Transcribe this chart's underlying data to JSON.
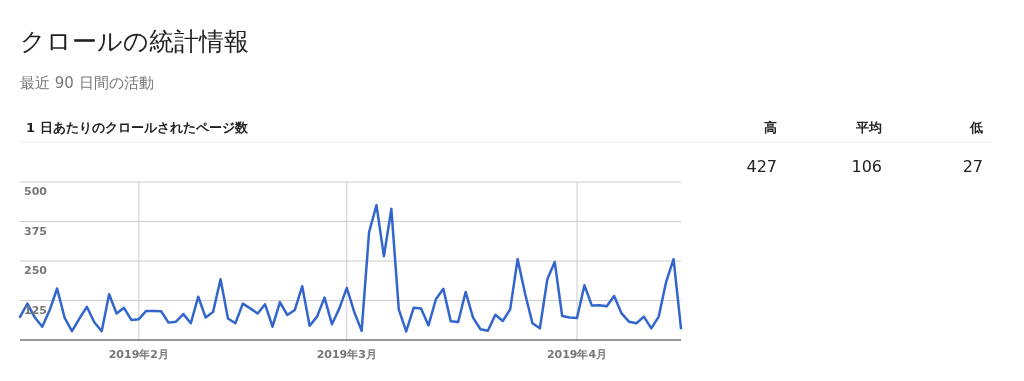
{
  "chart_data": {
    "type": "line",
    "title": "クロールの統計情報",
    "subtitle": "最近 90 日間の活動",
    "annotations": [
      "1 日あたりのクロールされたページ数",
      "高",
      "平均",
      "低",
      "427",
      "106",
      "27"
    ],
    "x": [
      "2019-01-16",
      "2019-01-17",
      "2019-01-18",
      "2019-01-19",
      "2019-01-20",
      "2019-01-21",
      "2019-01-22",
      "2019-01-23",
      "2019-01-24",
      "2019-01-25",
      "2019-01-26",
      "2019-01-27",
      "2019-01-28",
      "2019-01-29",
      "2019-01-30",
      "2019-01-31",
      "2019-02-01",
      "2019-02-02",
      "2019-02-03",
      "2019-02-04",
      "2019-02-05",
      "2019-02-06",
      "2019-02-07",
      "2019-02-08",
      "2019-02-09",
      "2019-02-10",
      "2019-02-11",
      "2019-02-12",
      "2019-02-13",
      "2019-02-14",
      "2019-02-15",
      "2019-02-16",
      "2019-02-17",
      "2019-02-18",
      "2019-02-19",
      "2019-02-20",
      "2019-02-21",
      "2019-02-22",
      "2019-02-23",
      "2019-02-24",
      "2019-02-25",
      "2019-02-26",
      "2019-02-27",
      "2019-02-28",
      "2019-03-01",
      "2019-03-02",
      "2019-03-03",
      "2019-03-04",
      "2019-03-05",
      "2019-03-06",
      "2019-03-07",
      "2019-03-08",
      "2019-03-09",
      "2019-03-10",
      "2019-03-11",
      "2019-03-12",
      "2019-03-13",
      "2019-03-14",
      "2019-03-15",
      "2019-03-16",
      "2019-03-17",
      "2019-03-18",
      "2019-03-19",
      "2019-03-20",
      "2019-03-21",
      "2019-03-22",
      "2019-03-23",
      "2019-03-24",
      "2019-03-25",
      "2019-03-26",
      "2019-03-27",
      "2019-03-28",
      "2019-03-29",
      "2019-03-30",
      "2019-03-31",
      "2019-04-01",
      "2019-04-02",
      "2019-04-03",
      "2019-04-04",
      "2019-04-05",
      "2019-04-06",
      "2019-04-07",
      "2019-04-08",
      "2019-04-09",
      "2019-04-10",
      "2019-04-11",
      "2019-04-12",
      "2019-04-13",
      "2019-04-14",
      "2019-04-15"
    ],
    "series": [
      {
        "color": "#3366cc",
        "values": [
          73,
          115,
          71,
          42,
          95,
          163,
          71,
          28,
          68,
          105,
          56,
          28,
          145,
          84,
          102,
          63,
          66,
          92,
          92,
          91,
          55,
          58,
          82,
          53,
          137,
          71,
          89,
          192,
          68,
          53,
          115,
          100,
          84,
          113,
          42,
          120,
          79,
          95,
          170,
          45,
          74,
          134,
          50,
          100,
          165,
          89,
          29,
          341,
          427,
          265,
          415,
          97,
          27,
          102,
          100,
          46,
          129,
          162,
          59,
          57,
          152,
          71,
          34,
          29,
          80,
          60,
          97,
          256,
          147,
          53,
          37,
          192,
          247,
          76,
          71,
          70,
          173,
          109,
          110,
          107,
          139,
          84,
          58,
          53,
          74,
          37,
          74,
          184,
          256,
          37
        ]
      }
    ],
    "xlim": [
      "2019-01-16",
      "2019-04-15"
    ],
    "xticks": [
      {
        "value": "2019-02-01",
        "label": "2019年2月"
      },
      {
        "value": "2019-03-01",
        "label": "2019年3月"
      },
      {
        "value": "2019-04-01",
        "label": "2019年4月"
      }
    ],
    "ylim": [
      0,
      500
    ],
    "yticks": [
      125,
      250,
      375,
      500
    ],
    "grid": true
  }
}
